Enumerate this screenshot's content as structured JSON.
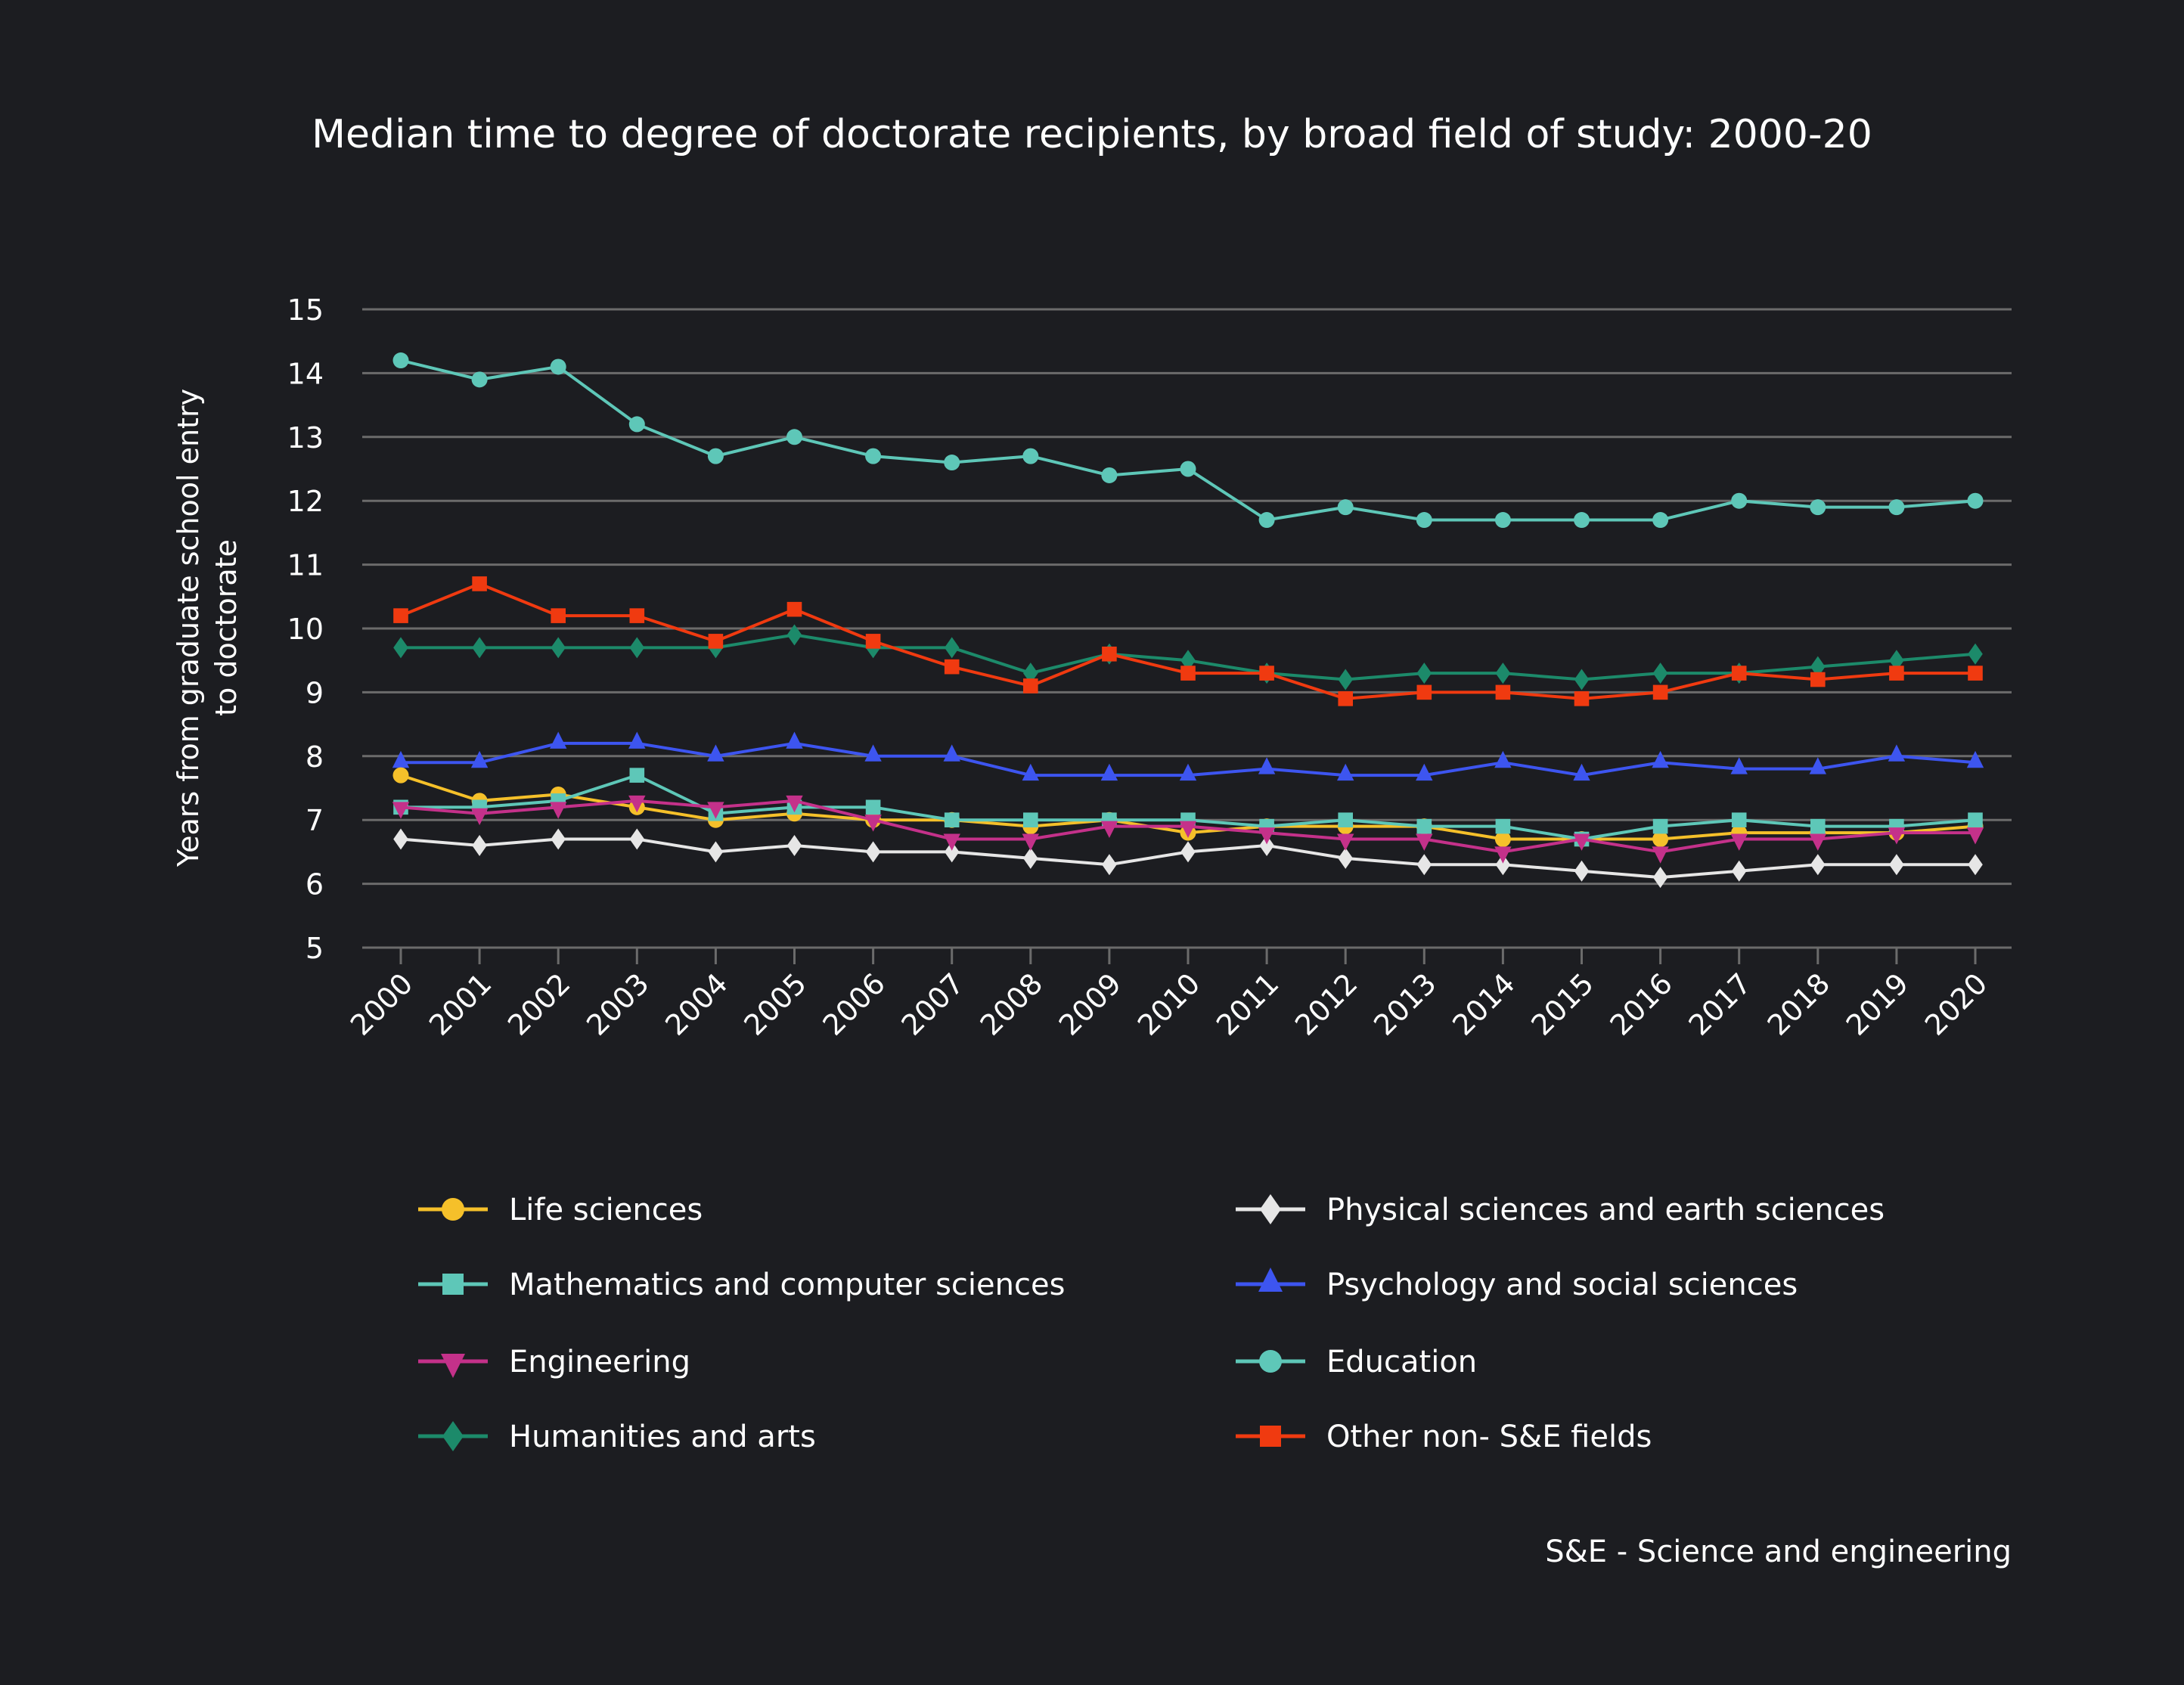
{
  "chart_data": {
    "type": "line",
    "title": "Median time to degree of doctorate recipients, by broad field of study: 2000-20",
    "ylabel_lines": [
      "Years from graduate school entry",
      "to doctorate"
    ],
    "xlabel": "",
    "ylim": [
      5,
      15
    ],
    "yticks": [
      5,
      6,
      7,
      8,
      9,
      10,
      11,
      12,
      13,
      14,
      15
    ],
    "grid": true,
    "legend_placement": "bottom",
    "x": [
      "2000",
      "2001",
      "2002",
      "2003",
      "2004",
      "2005",
      "2006",
      "2007",
      "2008",
      "2009",
      "2010",
      "2011",
      "2012",
      "2013",
      "2014",
      "2015",
      "2016",
      "2017",
      "2018",
      "2019",
      "2020"
    ],
    "series": [
      {
        "name": "Life sciences",
        "color": "#f5c02a",
        "marker": "circle",
        "values": [
          7.7,
          7.3,
          7.4,
          7.2,
          7.0,
          7.1,
          7.0,
          7.0,
          6.9,
          7.0,
          6.8,
          6.9,
          6.9,
          6.9,
          6.7,
          6.7,
          6.7,
          6.8,
          6.8,
          6.8,
          6.9
        ]
      },
      {
        "name": "Mathematics and computer sciences",
        "color": "#5ec7b8",
        "marker": "square",
        "values": [
          7.2,
          7.2,
          7.3,
          7.7,
          7.1,
          7.2,
          7.2,
          7.0,
          7.0,
          7.0,
          7.0,
          6.9,
          7.0,
          6.9,
          6.9,
          6.7,
          6.9,
          7.0,
          6.9,
          6.9,
          7.0
        ]
      },
      {
        "name": "Engineering",
        "color": "#c4318a",
        "marker": "triangle-down",
        "values": [
          7.2,
          7.1,
          7.2,
          7.3,
          7.2,
          7.3,
          7.0,
          6.7,
          6.7,
          6.9,
          6.9,
          6.8,
          6.7,
          6.7,
          6.5,
          6.7,
          6.5,
          6.7,
          6.7,
          6.8,
          6.8
        ]
      },
      {
        "name": "Humanities and arts",
        "color": "#1c8a6a",
        "marker": "diamond",
        "values": [
          9.7,
          9.7,
          9.7,
          9.7,
          9.7,
          9.9,
          9.7,
          9.7,
          9.3,
          9.6,
          9.5,
          9.3,
          9.2,
          9.3,
          9.3,
          9.2,
          9.3,
          9.3,
          9.4,
          9.5,
          9.6
        ]
      },
      {
        "name": "Physical sciences and earth sciences",
        "color": "#e6e6e6",
        "marker": "diamond",
        "values": [
          6.7,
          6.6,
          6.7,
          6.7,
          6.5,
          6.6,
          6.5,
          6.5,
          6.4,
          6.3,
          6.5,
          6.6,
          6.4,
          6.3,
          6.3,
          6.2,
          6.1,
          6.2,
          6.3,
          6.3,
          6.3
        ]
      },
      {
        "name": "Psychology and social sciences",
        "color": "#3d55f0",
        "marker": "triangle-up",
        "values": [
          7.9,
          7.9,
          8.2,
          8.2,
          8.0,
          8.2,
          8.0,
          8.0,
          7.7,
          7.7,
          7.7,
          7.8,
          7.7,
          7.7,
          7.9,
          7.7,
          7.9,
          7.8,
          7.8,
          8.0,
          7.9
        ]
      },
      {
        "name": "Education",
        "color": "#5ec7b8",
        "marker": "circle",
        "values": [
          14.2,
          13.9,
          14.1,
          13.2,
          12.7,
          13.0,
          12.7,
          12.6,
          12.7,
          12.4,
          12.5,
          11.7,
          11.9,
          11.7,
          11.7,
          11.7,
          11.7,
          12.0,
          11.9,
          11.9,
          12.0
        ]
      },
      {
        "name": "Other non- S&E fields",
        "color": "#f03a10",
        "marker": "square",
        "values": [
          10.2,
          10.7,
          10.2,
          10.2,
          9.8,
          10.3,
          9.8,
          9.4,
          9.1,
          9.6,
          9.3,
          9.3,
          8.9,
          9.0,
          9.0,
          8.9,
          9.0,
          9.3,
          9.2,
          9.3,
          9.3
        ]
      }
    ],
    "footnote": "S&E - Science and engineering"
  }
}
